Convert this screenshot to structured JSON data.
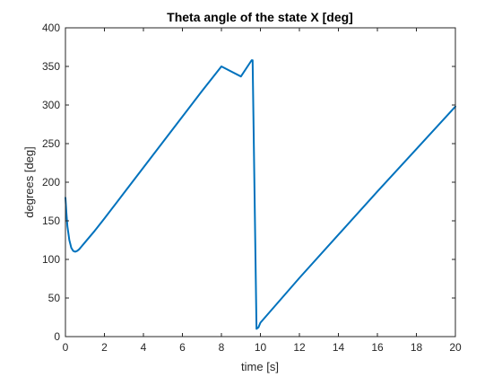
{
  "chart_data": {
    "type": "line",
    "title": "Theta angle of the state X [deg]",
    "xlabel": "time [s]",
    "ylabel": "degrees [deg]",
    "xlim": [
      0,
      20
    ],
    "ylim": [
      0,
      400
    ],
    "xticks": [
      0,
      2,
      4,
      6,
      8,
      10,
      12,
      14,
      16,
      18,
      20
    ],
    "yticks": [
      0,
      50,
      100,
      150,
      200,
      250,
      300,
      350,
      400
    ],
    "grid": false,
    "legend": "none",
    "series": [
      {
        "color": "#0072BD",
        "x": [
          0,
          0.05,
          0.1,
          0.2,
          0.3,
          0.4,
          0.5,
          0.6,
          0.7,
          0.8,
          1.0,
          1.5,
          2.0,
          3.0,
          4.0,
          5.0,
          6.0,
          7.0,
          8.0,
          9.0,
          9.55,
          9.6,
          9.8,
          9.9,
          10.0,
          12.0,
          14.0,
          16.0,
          18.0,
          20.0
        ],
        "y": [
          180,
          160,
          143,
          125,
          115,
          111,
          110,
          111,
          113,
          116,
          122,
          137,
          153,
          186,
          219,
          252,
          285,
          318,
          350,
          337,
          358,
          358,
          10,
          12,
          18,
          76,
          132,
          188,
          243,
          298
        ]
      }
    ]
  }
}
